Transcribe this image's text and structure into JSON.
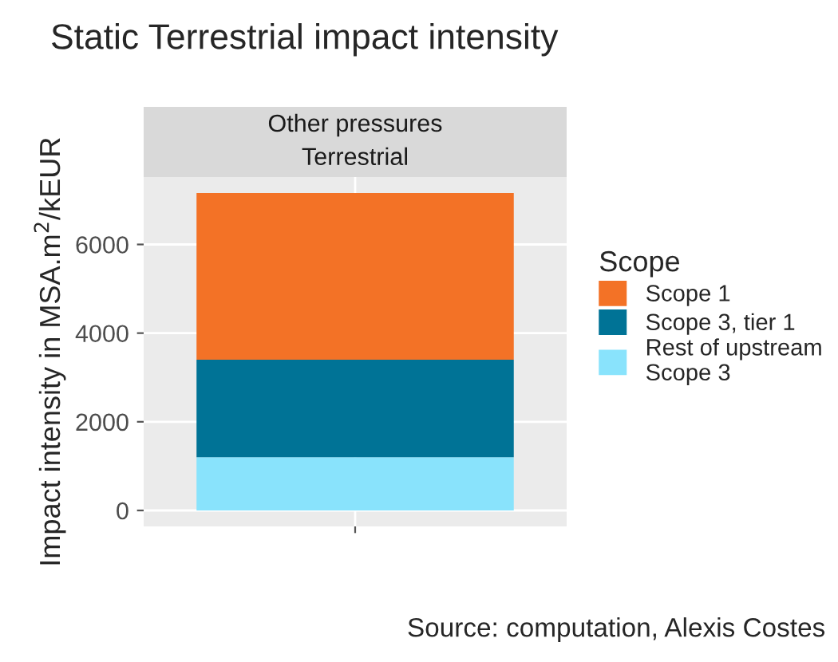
{
  "chart_data": {
    "type": "bar",
    "title": "Static Terrestrial impact intensity",
    "ylabel": "Impact intensity in MSA.m$^{2}$/kEUR",
    "legend_title": "Scope",
    "categories": [
      null
    ],
    "stacked": true,
    "series": [
      {
        "name": "Rest of upstream\nScope 3",
        "color": "#89e3fc",
        "values": [
          1200
        ]
      },
      {
        "name": "Scope 3, tier 1",
        "color": "#007396",
        "values": [
          2200
        ]
      },
      {
        "name": "Scope 1",
        "color": "#f37226",
        "values": [
          3760
        ]
      }
    ],
    "ylim": [
      -360,
      7520
    ],
    "yticks": [
      0,
      2000,
      4000,
      6000
    ],
    "grid": true,
    "legend": "right",
    "annotations": [
      "Other pressures\nTerrestrial",
      "Source: computation, Alexis Costes"
    ]
  }
}
